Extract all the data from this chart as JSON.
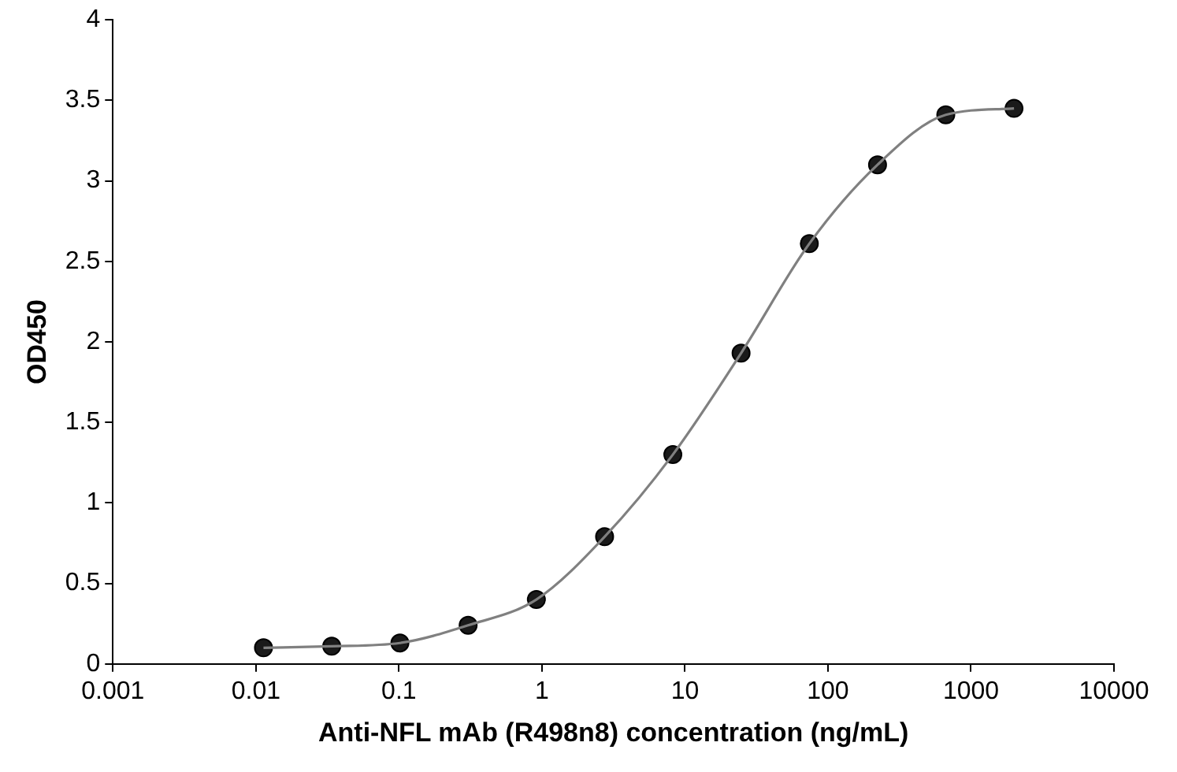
{
  "chart_data": {
    "type": "scatter",
    "xlabel": "Anti-NFL mAb (R498n8) concentration (ng/mL)",
    "ylabel": "OD450",
    "log": "x",
    "grid": false,
    "legend": false,
    "xlim": [
      0.001,
      10000
    ],
    "xticks": [
      0.001,
      0.01,
      0.1,
      1,
      10,
      100,
      1000,
      10000
    ],
    "ylim": [
      0,
      4
    ],
    "yticks": [
      0,
      0.5,
      1,
      1.5,
      2,
      2.5,
      3,
      3.5,
      4
    ],
    "series": [
      {
        "type": "line",
        "color": "#808080",
        "marker": "none",
        "line_style": "solid",
        "x": [
          0.0113,
          0.0339,
          0.1016,
          0.3048,
          0.9145,
          2.743,
          8.23,
          24.69,
          74.07,
          222.2,
          666.7,
          2000
        ],
        "values": [
          0.1,
          0.11,
          0.13,
          0.24,
          0.4,
          0.79,
          1.3,
          1.93,
          2.61,
          3.1,
          3.41,
          3.45
        ]
      },
      {
        "color": "#1a1a1a",
        "marker": "circle",
        "x": [
          0.0113,
          0.0339,
          0.1016,
          0.3048,
          0.9145,
          2.743,
          8.23,
          24.69,
          74.07,
          222.2,
          666.7,
          2000
        ],
        "values": [
          0.1,
          0.11,
          0.13,
          0.24,
          0.4,
          0.79,
          1.3,
          1.93,
          2.61,
          3.1,
          3.41,
          3.45
        ]
      }
    ]
  }
}
